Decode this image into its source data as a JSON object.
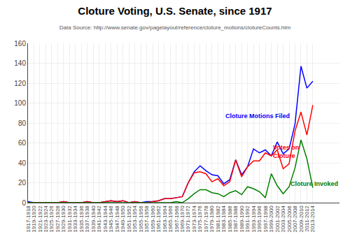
{
  "chart_data": {
    "type": "line",
    "title": "Cloture Voting, U.S. Senate, since 1917",
    "subtitle": "Data Source: http://www.senate.gov/pagelayout/reference/cloture_motions/clotureCounts.htm",
    "categories": [
      "1917-1918",
      "1919-1920",
      "1921-1922",
      "1923-1924",
      "1925-1926",
      "1927-1928",
      "1929-1930",
      "1931-1932",
      "1933-1934",
      "1935-1936",
      "1937-1938",
      "1939-1940",
      "1941-1942",
      "1943-1944",
      "1945-1946",
      "1947-1948",
      "1949-1950",
      "1951-1952",
      "1953-1954",
      "1955-1956",
      "1957-1958",
      "1959-1960",
      "1961-1962",
      "1963-1964",
      "1965-1966",
      "1967-1968",
      "1969-1970",
      "1971-1972",
      "1973-1974",
      "1975-1976",
      "1977-1978",
      "1979-1980",
      "1981-1982",
      "1983-1984",
      "1985-1986",
      "1987-1988",
      "1989-1990",
      "1991-1992",
      "1993-1994",
      "1995-1996",
      "1997-1998",
      "1999-2000",
      "2001-2002",
      "2003-2004",
      "2005-2006",
      "2007-2008",
      "2009-2010",
      "2011-2012",
      "2013-2014"
    ],
    "series": [
      {
        "color": "blue",
        "values": [
          1,
          0,
          0,
          0,
          0,
          0,
          1,
          0,
          0,
          0,
          1,
          0,
          0,
          1,
          2,
          1,
          2,
          0,
          1,
          0,
          1,
          1,
          2,
          4,
          4,
          5,
          6,
          20,
          31,
          37,
          32,
          28,
          27,
          19,
          23,
          43,
          28,
          36,
          54,
          50,
          53,
          47,
          61,
          49,
          54,
          79,
          137,
          115,
          122
        ]
      },
      {
        "color": "red",
        "values": [
          0,
          0,
          0,
          0,
          0,
          0,
          1,
          0,
          0,
          0,
          1,
          0,
          0,
          1,
          2,
          1,
          2,
          0,
          1,
          0,
          0,
          1,
          2,
          4,
          4,
          5,
          6,
          20,
          30,
          31,
          29,
          21,
          24,
          17,
          21,
          43,
          26,
          36,
          42,
          42,
          50,
          47,
          53,
          34,
          39,
          72,
          91,
          68,
          98
        ]
      },
      {
        "color": "green",
        "values": [
          0,
          0,
          0,
          0,
          0,
          0,
          0,
          0,
          0,
          0,
          0,
          0,
          0,
          0,
          0,
          0,
          0,
          0,
          0,
          0,
          0,
          0,
          0,
          0,
          0,
          1,
          0,
          4,
          9,
          13,
          13,
          10,
          9,
          6,
          10,
          12,
          8,
          16,
          14,
          11,
          5,
          29,
          17,
          9,
          16,
          35,
          63,
          44,
          15
        ]
      }
    ],
    "annotations": [
      {
        "text": "Cloture Motions Filed",
        "x": "1983-1984",
        "y": 82,
        "color": "blue"
      },
      {
        "text": "Votes on\nCloture",
        "x": "1999-2000",
        "y": 42,
        "color": "red"
      },
      {
        "text": "Cloture Invoked",
        "x": "2005-2006",
        "y": 14,
        "color": "green"
      }
    ],
    "ylim": [
      0,
      160
    ],
    "yticks": [
      0,
      20,
      40,
      60,
      80,
      100,
      120,
      140,
      160
    ],
    "grid": true
  }
}
